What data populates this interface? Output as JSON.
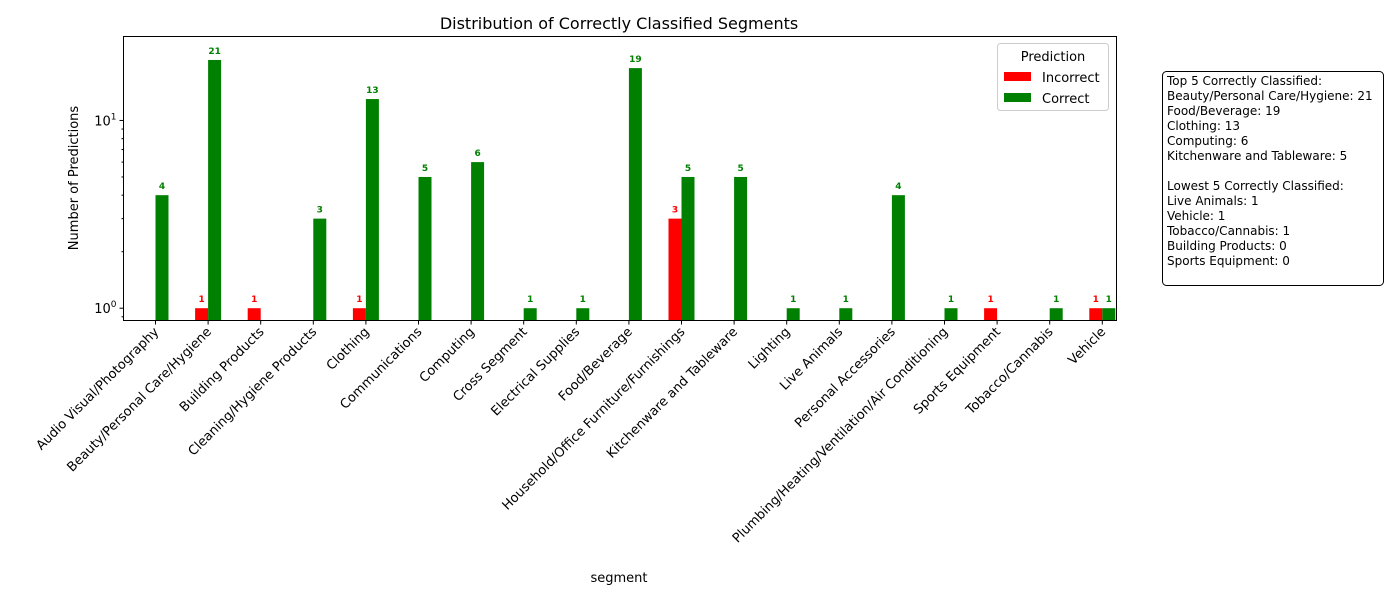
{
  "chart_data": {
    "type": "bar",
    "title": "Distribution of Correctly Classified Segments",
    "xlabel": "segment",
    "ylabel": "Number of Predictions",
    "yscale": "log",
    "ylim": [
      0.86,
      28
    ],
    "yticks": [
      {
        "value": 1,
        "base": "10",
        "exp": "0"
      },
      {
        "value": 10,
        "base": "10",
        "exp": "1"
      }
    ],
    "categories": [
      "Audio Visual/Photography",
      "Beauty/Personal Care/Hygiene",
      "Building Products",
      "Cleaning/Hygiene Products",
      "Clothing",
      "Communications",
      "Computing",
      "Cross Segment",
      "Electrical Supplies",
      "Food/Beverage",
      "Household/Office Furniture/Furnishings",
      "Kitchenware and Tableware",
      "Lighting",
      "Live Animals",
      "Personal Accessories",
      "Plumbing/Heating/Ventilation/Air Conditioning",
      "Sports Equipment",
      "Tobacco/Cannabis",
      "Vehicle"
    ],
    "series": [
      {
        "name": "Incorrect",
        "color": "#ff0000",
        "values": [
          0,
          1,
          1,
          0,
          1,
          0,
          0,
          0,
          0,
          0,
          3,
          0,
          0,
          0,
          0,
          0,
          1,
          0,
          1
        ]
      },
      {
        "name": "Correct",
        "color": "#008000",
        "values": [
          4,
          21,
          0,
          3,
          13,
          5,
          6,
          1,
          1,
          19,
          5,
          5,
          1,
          1,
          4,
          1,
          0,
          1,
          1
        ]
      }
    ],
    "legend": {
      "title": "Prediction",
      "position": "top-right"
    },
    "grid": false
  },
  "summary_box": {
    "lines": [
      "Top 5 Correctly Classified:",
      "Beauty/Personal Care/Hygiene: 21",
      "Food/Beverage: 19",
      "Clothing: 13",
      "Computing: 6",
      "Kitchenware and Tableware: 5",
      "",
      "Lowest 5 Correctly Classified:",
      "Live Animals: 1",
      "Vehicle: 1",
      "Tobacco/Cannabis: 1",
      "Building Products: 0",
      "Sports Equipment: 0"
    ]
  }
}
